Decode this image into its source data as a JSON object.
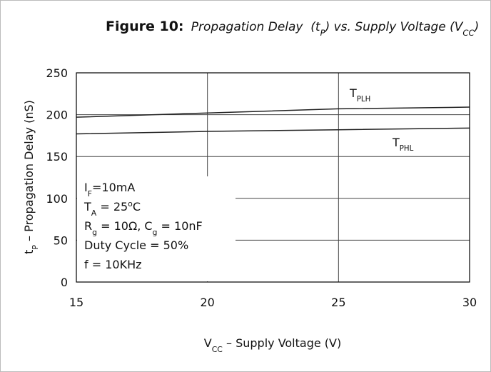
{
  "chart_data": {
    "type": "line",
    "title_label": "Figure 10:",
    "title": [
      [
        "Propagation Delay  (t"
      ],
      [
        "P",
        "sub"
      ],
      [
        ") vs. Supply Voltage (V"
      ],
      [
        "CC",
        "sub"
      ],
      [
        ")"
      ]
    ],
    "x_label": [
      [
        "V"
      ],
      [
        "CC",
        "sub"
      ],
      [
        " – Supply Voltage (V)"
      ]
    ],
    "y_label": [
      [
        "t"
      ],
      [
        "P",
        "sub"
      ],
      [
        " – Propagation Delay (nS)"
      ]
    ],
    "x": [
      15,
      20,
      25,
      30
    ],
    "series": [
      {
        "name": [
          [
            "T"
          ],
          [
            "PLH",
            "sub"
          ]
        ],
        "color": "#222222",
        "values": [
          197,
          202,
          207,
          209
        ]
      },
      {
        "name": [
          [
            "T"
          ],
          [
            "PHL",
            "sub"
          ]
        ],
        "color": "#222222",
        "values": [
          177,
          180,
          182,
          184
        ]
      }
    ],
    "xlim": [
      15,
      30
    ],
    "xticks": [
      15,
      20,
      25,
      30
    ],
    "ylim": [
      0,
      250
    ],
    "yticks": [
      0,
      50,
      100,
      150,
      200,
      250
    ],
    "grid": true,
    "annotations": [
      [
        [
          "I"
        ],
        [
          "F",
          "sub"
        ],
        [
          "=10mA"
        ]
      ],
      [
        [
          "T"
        ],
        [
          "A",
          "sub"
        ],
        [
          " = 25"
        ],
        [
          "o",
          "sup"
        ],
        [
          "C"
        ]
      ],
      [
        [
          "R"
        ],
        [
          "g",
          "sub"
        ],
        [
          " = 10Ω, C"
        ],
        [
          "g",
          "sub"
        ],
        [
          " = 10nF"
        ]
      ],
      [
        [
          "Duty Cycle = 50%"
        ]
      ],
      [
        [
          "f = 10KHz"
        ]
      ]
    ]
  }
}
